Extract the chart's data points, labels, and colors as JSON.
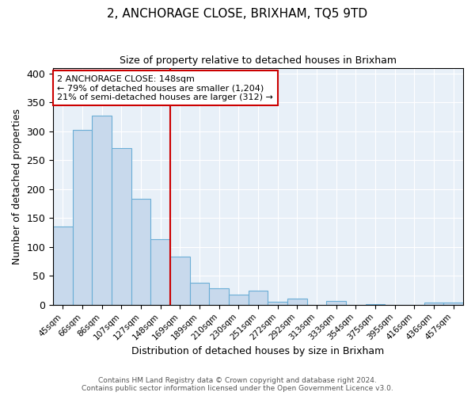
{
  "title": "2, ANCHORAGE CLOSE, BRIXHAM, TQ5 9TD",
  "subtitle": "Size of property relative to detached houses in Brixham",
  "xlabel": "Distribution of detached houses by size in Brixham",
  "ylabel": "Number of detached properties",
  "bar_labels": [
    "45sqm",
    "66sqm",
    "86sqm",
    "107sqm",
    "127sqm",
    "148sqm",
    "169sqm",
    "189sqm",
    "210sqm",
    "230sqm",
    "251sqm",
    "272sqm",
    "292sqm",
    "313sqm",
    "333sqm",
    "354sqm",
    "375sqm",
    "395sqm",
    "416sqm",
    "436sqm",
    "457sqm"
  ],
  "bar_values": [
    135,
    303,
    327,
    271,
    184,
    113,
    84,
    38,
    28,
    17,
    25,
    5,
    11,
    0,
    6,
    0,
    1,
    0,
    0,
    4,
    4
  ],
  "bar_color": "#c8d9ec",
  "bar_edge_color": "#6baed6",
  "vline_color": "#cc0000",
  "annotation_title": "2 ANCHORAGE CLOSE: 148sqm",
  "annotation_line1": "← 79% of detached houses are smaller (1,204)",
  "annotation_line2": "21% of semi-detached houses are larger (312) →",
  "annotation_box_color": "white",
  "annotation_box_edge": "#cc0000",
  "ylim": [
    0,
    410
  ],
  "yticks": [
    0,
    50,
    100,
    150,
    200,
    250,
    300,
    350,
    400
  ],
  "footer1": "Contains HM Land Registry data © Crown copyright and database right 2024.",
  "footer2": "Contains public sector information licensed under the Open Government Licence v3.0.",
  "bg_color": "#e8f0f8",
  "grid_color": "white"
}
